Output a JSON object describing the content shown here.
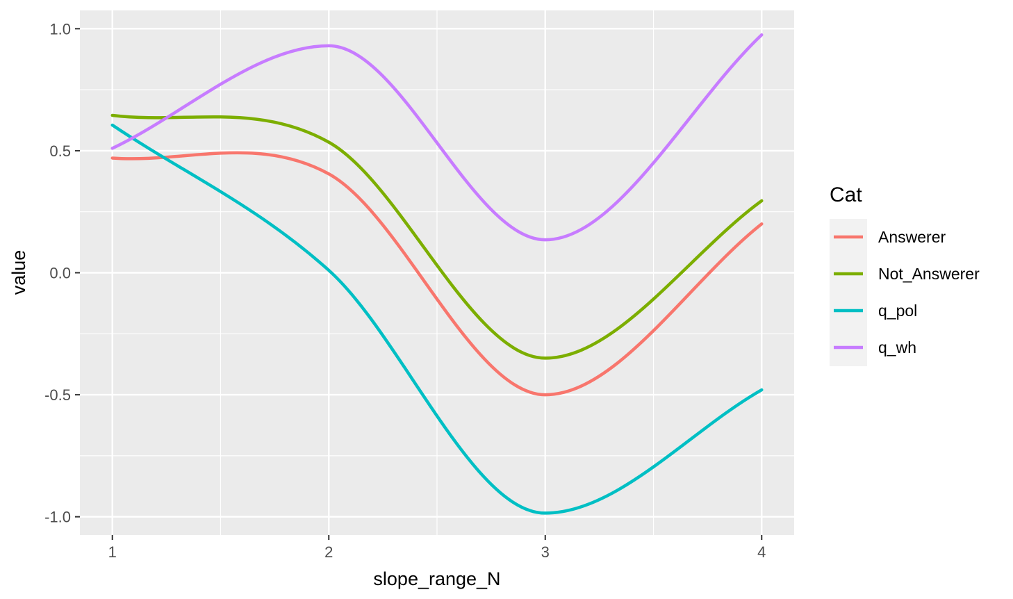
{
  "chart_data": {
    "type": "line",
    "smooth": true,
    "xlabel": "slope_range_N",
    "ylabel": "value",
    "x": [
      1,
      2,
      3,
      4
    ],
    "xlim": [
      0.85,
      4.15
    ],
    "ylim": [
      -1.075,
      1.075
    ],
    "x_ticks": [
      1,
      2,
      3,
      4
    ],
    "x_tick_labels": [
      "1",
      "2",
      "3",
      "4"
    ],
    "y_ticks": [
      -1.0,
      -0.5,
      0.0,
      0.5,
      1.0
    ],
    "y_tick_labels": [
      "-1.0",
      "-0.5",
      "0.0",
      "0.5",
      "1.0"
    ],
    "grid": true,
    "legend_title": "Cat",
    "legend_position": "right",
    "background": "#EBEBEB",
    "series": [
      {
        "name": "Answerer",
        "color": "#F8766D",
        "values": [
          0.47,
          0.405,
          -0.5,
          0.2
        ]
      },
      {
        "name": "Not_Answerer",
        "color": "#7CAE00",
        "values": [
          0.645,
          0.535,
          -0.35,
          0.295
        ]
      },
      {
        "name": "q_pol",
        "color": "#00BFC4",
        "values": [
          0.605,
          0.01,
          -0.985,
          -0.48
        ]
      },
      {
        "name": "q_wh",
        "color": "#C77CFF",
        "values": [
          0.51,
          0.93,
          0.135,
          0.975
        ]
      }
    ]
  }
}
